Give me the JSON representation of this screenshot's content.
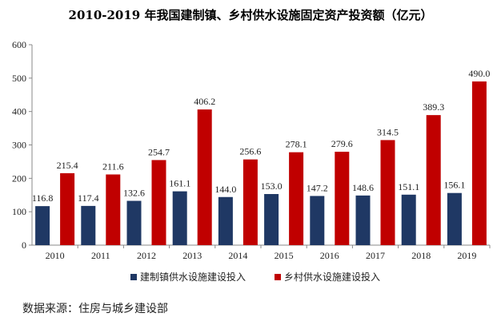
{
  "chart_data": {
    "type": "bar",
    "title": "2010-2019 年我国建制镇、乡村供水设施固定资产投资额（亿元）",
    "categories": [
      "2010",
      "2011",
      "2012",
      "2013",
      "2014",
      "2015",
      "2016",
      "2017",
      "2018",
      "2019"
    ],
    "series": [
      {
        "name": "建制镇供水设施建设投入",
        "color": "#1f3864",
        "values": [
          116.8,
          117.4,
          132.6,
          161.1,
          144.0,
          153.0,
          147.2,
          148.6,
          151.1,
          156.1
        ],
        "labels": [
          "116.8",
          "117.4",
          "132.6",
          "161.1",
          "144.0",
          "153.0",
          "147.2",
          "148.6",
          "151.1",
          "156.1"
        ]
      },
      {
        "name": "乡村供水设施建设投入",
        "color": "#c00000",
        "values": [
          215.4,
          211.6,
          254.7,
          406.2,
          256.6,
          278.1,
          279.6,
          314.5,
          389.3,
          490.0
        ],
        "labels": [
          "215.4",
          "211.6",
          "254.7",
          "406.2",
          "256.6",
          "278.1",
          "279.6",
          "314.5",
          "389.3",
          "490.0"
        ]
      }
    ],
    "ylim": [
      0,
      600
    ],
    "yticks": [
      "0",
      "100",
      "200",
      "300",
      "400",
      "500",
      "600"
    ],
    "grid": false,
    "legend": "bottom"
  },
  "source": "数据来源：住房与城乡建设部"
}
